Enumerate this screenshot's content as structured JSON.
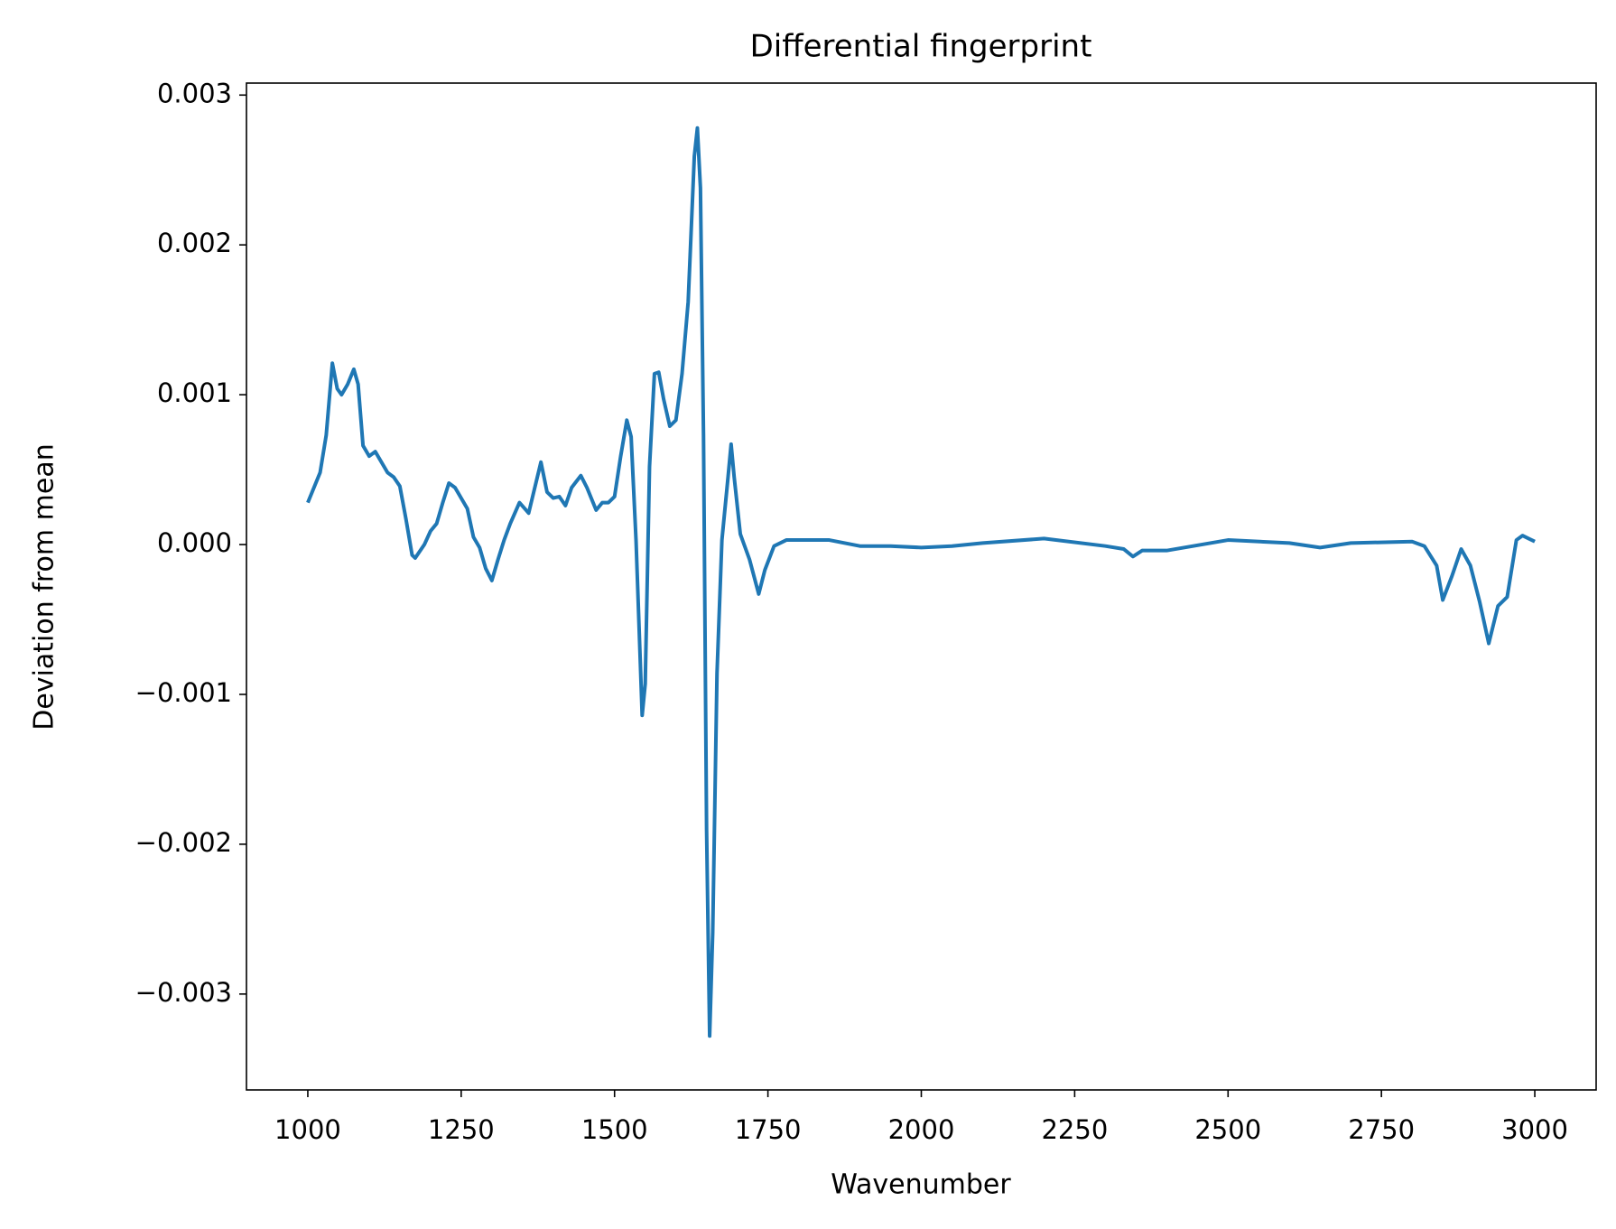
{
  "chart_data": {
    "type": "line",
    "title": "Differential fingerprint",
    "x_label": "Wavenumber",
    "y_label": "Deviation from mean",
    "x": [
      1000,
      1020,
      1030,
      1040,
      1048,
      1055,
      1065,
      1075,
      1082,
      1090,
      1100,
      1110,
      1120,
      1130,
      1140,
      1150,
      1160,
      1170,
      1175,
      1190,
      1200,
      1210,
      1220,
      1230,
      1240,
      1250,
      1260,
      1270,
      1280,
      1290,
      1300,
      1310,
      1320,
      1330,
      1345,
      1360,
      1380,
      1390,
      1400,
      1410,
      1420,
      1430,
      1445,
      1455,
      1462,
      1470,
      1480,
      1490,
      1500,
      1510,
      1520,
      1527,
      1535,
      1545,
      1550,
      1557,
      1565,
      1572,
      1580,
      1590,
      1600,
      1610,
      1620,
      1630,
      1635,
      1640,
      1645,
      1650,
      1655,
      1660,
      1667,
      1675,
      1685,
      1690,
      1695,
      1705,
      1720,
      1735,
      1745,
      1760,
      1780,
      1800,
      1850,
      1900,
      1950,
      2000,
      2050,
      2100,
      2200,
      2300,
      2330,
      2345,
      2360,
      2400,
      2500,
      2600,
      2650,
      2700,
      2800,
      2820,
      2840,
      2850,
      2865,
      2880,
      2895,
      2910,
      2925,
      2940,
      2955,
      2970,
      2980,
      2990,
      3000
    ],
    "series": [
      {
        "name": "Deviation",
        "color": "#1f77b4",
        "values": [
          0.00028,
          0.00048,
          0.00073,
          0.00121,
          0.00104,
          0.001,
          0.00107,
          0.00117,
          0.00107,
          0.00066,
          0.00059,
          0.00062,
          0.00055,
          0.00048,
          0.00045,
          0.00039,
          0.00017,
          -7e-05,
          -9e-05,
          0,
          9e-05,
          0.00014,
          0.00028,
          0.00041,
          0.00038,
          0.00031,
          0.00024,
          5e-05,
          -2e-05,
          -0.00016,
          -0.00024,
          -0.0001,
          3e-05,
          0.00014,
          0.00028,
          0.00021,
          0.00055,
          0.00035,
          0.00031,
          0.00032,
          0.00026,
          0.00038,
          0.00046,
          0.00038,
          0.00031,
          0.00023,
          0.00028,
          0.00028,
          0.00032,
          0.00059,
          0.00083,
          0.00072,
          3e-05,
          -0.00114,
          -0.00093,
          0.00052,
          0.00114,
          0.00115,
          0.00097,
          0.00079,
          0.00083,
          0.00114,
          0.00162,
          0.00259,
          0.00278,
          0.00238,
          0.00073,
          -0.0019,
          -0.00328,
          -0.00259,
          -0.00086,
          3e-05,
          0.00045,
          0.00067,
          0.00045,
          7e-05,
          -0.0001,
          -0.00033,
          -0.00017,
          -1e-05,
          3e-05,
          3e-05,
          3e-05,
          -1e-05,
          -1e-05,
          -2e-05,
          -1e-05,
          1e-05,
          4e-05,
          -1e-05,
          -3e-05,
          -8e-05,
          -4e-05,
          -4e-05,
          3e-05,
          1e-05,
          -2e-05,
          1e-05,
          2e-05,
          -1e-05,
          -0.00014,
          -0.00037,
          -0.00021,
          -3e-05,
          -0.00014,
          -0.00038,
          -0.00066,
          -0.00041,
          -0.00035,
          3e-05,
          6e-05,
          4e-05,
          2e-05
        ]
      }
    ],
    "xlim": [
      900,
      3100
    ],
    "ylim": [
      -0.00364,
      0.00308
    ],
    "xticks": [
      1000,
      1250,
      1500,
      1750,
      2000,
      2250,
      2500,
      2750,
      3000
    ],
    "yticks": [
      {
        "value": -0.003,
        "label": "−0.003"
      },
      {
        "value": -0.002,
        "label": "−0.002"
      },
      {
        "value": -0.001,
        "label": "−0.001"
      },
      {
        "value": 0,
        "label": "0.000"
      },
      0.001,
      0.002,
      0.003
    ],
    "grid": false
  }
}
